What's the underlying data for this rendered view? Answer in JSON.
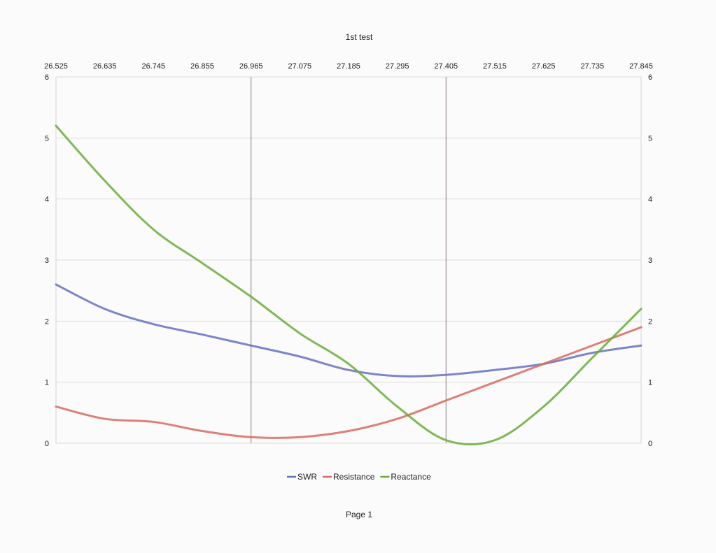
{
  "chart_data": {
    "type": "line",
    "title": "1st test",
    "x": [
      26.525,
      26.635,
      26.745,
      26.855,
      26.965,
      27.075,
      27.185,
      27.295,
      27.405,
      27.515,
      27.625,
      27.735,
      27.845
    ],
    "x_tick_labels": [
      "26.525",
      "26.635",
      "26.745",
      "26.855",
      "26.965",
      "27.075",
      "27.185",
      "27.295",
      "27.405",
      "27.515",
      "27.625",
      "27.735",
      "27.845"
    ],
    "ylim": [
      0,
      6
    ],
    "y_ticks": [
      0,
      1,
      2,
      3,
      4,
      5,
      6
    ],
    "grid": true,
    "legend_position": "bottom",
    "highlight_x": [
      26.965,
      27.405
    ],
    "series": [
      {
        "name": "SWR",
        "color": "#6570c0",
        "values": [
          2.6,
          2.2,
          1.95,
          1.78,
          1.6,
          1.42,
          1.2,
          1.1,
          1.12,
          1.2,
          1.3,
          1.48,
          1.6
        ]
      },
      {
        "name": "Resistance",
        "color": "#d86a60",
        "values": [
          0.6,
          0.4,
          0.35,
          0.2,
          0.1,
          0.1,
          0.2,
          0.4,
          0.7,
          1.0,
          1.3,
          1.6,
          1.9
        ]
      },
      {
        "name": "Reactance",
        "color": "#6aab3a",
        "values": [
          5.2,
          4.3,
          3.5,
          2.95,
          2.4,
          1.8,
          1.3,
          0.6,
          0.05,
          0.05,
          0.6,
          1.4,
          2.2
        ]
      }
    ]
  },
  "footer": {
    "page_label": "Page 1"
  }
}
